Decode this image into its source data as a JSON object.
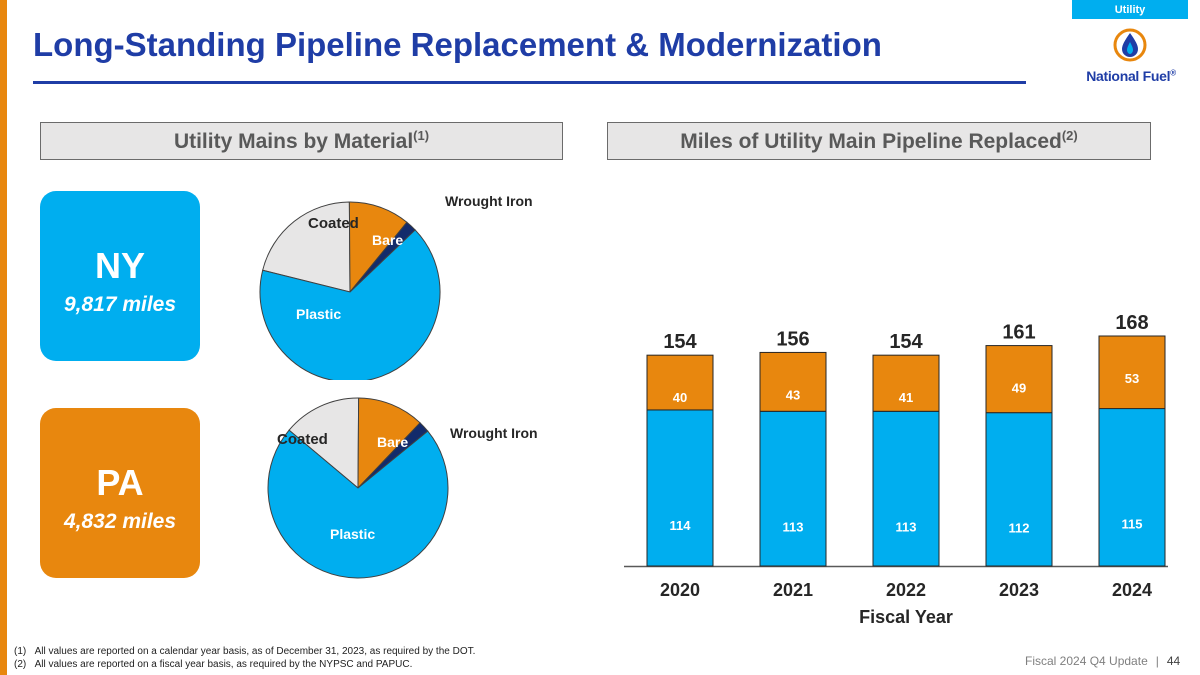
{
  "header": {
    "title": "Long-Standing Pipeline Replacement & Modernization",
    "tag": "Utility",
    "logo_text": "National Fuel",
    "logo_mark": "®"
  },
  "sections": {
    "left_title": "Utility Mains by Material",
    "left_sup": "(1)",
    "right_title": "Miles of Utility Main Pipeline Replaced",
    "right_sup": "(2)"
  },
  "states": [
    {
      "name": "NY",
      "miles": "9,817 miles",
      "color": "#00AEEF"
    },
    {
      "name": "PA",
      "miles": "4,832 miles",
      "color": "#E8870E"
    }
  ],
  "footnotes": [
    {
      "num": "(1)",
      "text": "All values are reported on a calendar year basis, as of December 31, 2023, as required by the DOT."
    },
    {
      "num": "(2)",
      "text": "All values are reported on a fiscal year basis, as required by the NYPSC and PAPUC."
    }
  ],
  "footer": {
    "label": "Fiscal 2024 Q4 Update",
    "page": "44"
  },
  "chart_data": [
    {
      "type": "pie",
      "labels": [
        "Plastic",
        "Coated",
        "Bare",
        "Wrought Iron"
      ],
      "values": [
        66,
        21,
        11,
        2
      ],
      "colors": [
        "#00AEEF",
        "#E7E6E6",
        "#E8870E",
        "#132B6B"
      ]
    },
    {
      "type": "pie",
      "labels": [
        "Plastic",
        "Coated",
        "Bare",
        "Wrought Iron"
      ],
      "values": [
        72,
        14,
        12,
        2
      ],
      "colors": [
        "#00AEEF",
        "#E7E6E6",
        "#E8870E",
        "#132B6B"
      ]
    },
    {
      "type": "bar",
      "stacked": true,
      "categories": [
        "2020",
        "2021",
        "2022",
        "2023",
        "2024"
      ],
      "series": [
        {
          "values": [
            114,
            113,
            113,
            112,
            115
          ],
          "color": "#00AEEF"
        },
        {
          "values": [
            40,
            43,
            41,
            49,
            53
          ],
          "color": "#E8870E"
        }
      ],
      "totals": [
        154,
        156,
        154,
        161,
        168
      ],
      "xlabel": "Fiscal Year",
      "ylim": [
        0,
        168
      ]
    }
  ]
}
